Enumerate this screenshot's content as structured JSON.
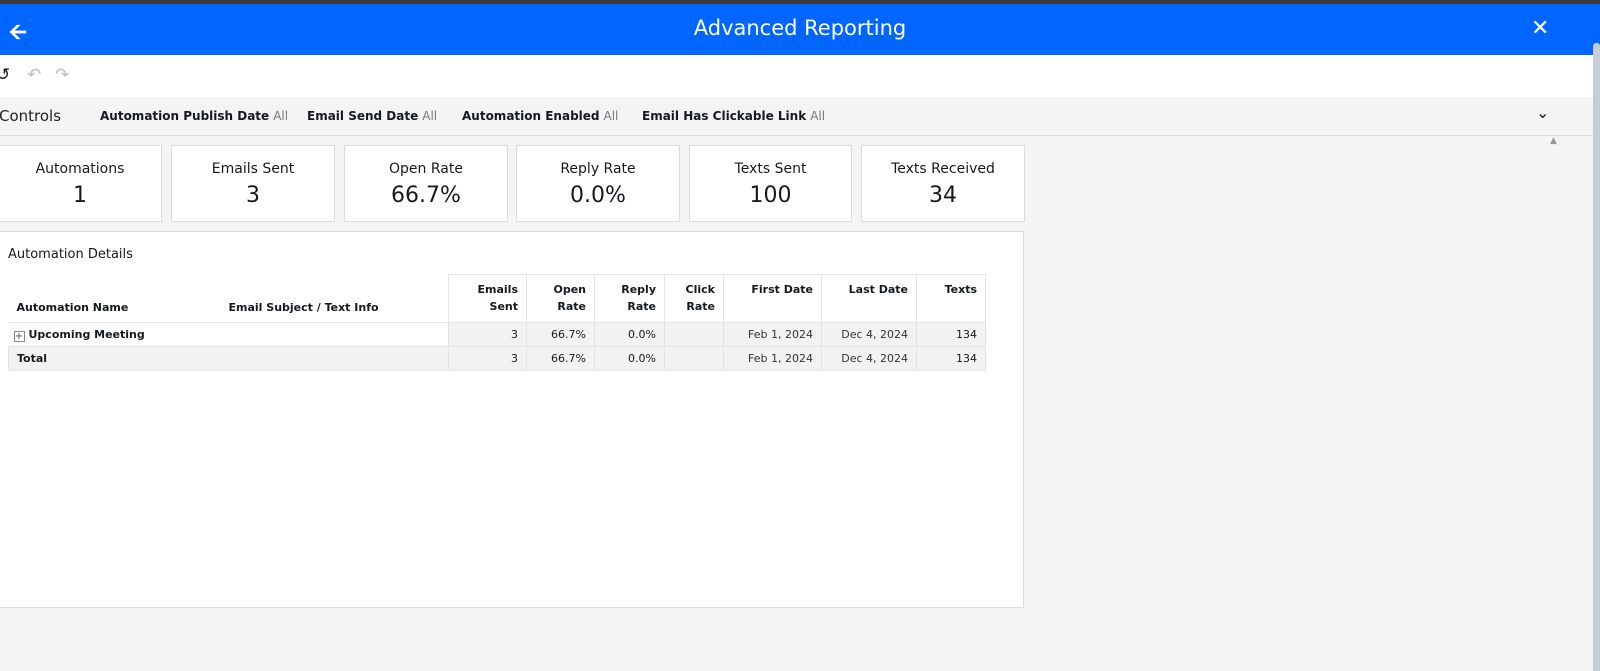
{
  "header": {
    "title": "Advanced Reporting",
    "back_icon": "arrow-left-icon",
    "close_icon": "close-icon"
  },
  "toolbar": {
    "icons": [
      "reset-icon",
      "undo-icon",
      "redo-icon"
    ]
  },
  "controls": {
    "label": "Controls",
    "filters": [
      {
        "name": "Automation Publish Date",
        "value": "All"
      },
      {
        "name": "Email Send Date",
        "value": "All"
      },
      {
        "name": "Automation Enabled",
        "value": "All"
      },
      {
        "name": "Email Has Clickable Link",
        "value": "All"
      }
    ]
  },
  "kpis": [
    {
      "label": "Automations",
      "value": "1"
    },
    {
      "label": "Emails Sent",
      "value": "3"
    },
    {
      "label": "Open Rate",
      "value": "66.7%"
    },
    {
      "label": "Reply Rate",
      "value": "0.0%"
    },
    {
      "label": "Texts Sent",
      "value": "100"
    },
    {
      "label": "Texts Received",
      "value": "34"
    }
  ],
  "table": {
    "title": "Automation Details",
    "headers": {
      "name": "Automation Name",
      "subject": "Email Subject / Text Info",
      "emails1": "Emails",
      "emails2": "Sent",
      "open1": "Open",
      "open2": "Rate",
      "reply1": "Reply",
      "reply2": "Rate",
      "click1": "Click",
      "click2": "Rate",
      "first": "First Date",
      "last": "Last Date",
      "texts": "Texts"
    },
    "rows": [
      {
        "name": "Upcoming Meeting",
        "subject": "",
        "emails": "3",
        "open": "66.7%",
        "reply": "0.0%",
        "click": "",
        "first": "Feb 1, 2024",
        "last": "Dec 4, 2024",
        "texts": "134"
      }
    ],
    "total": {
      "name": "Total",
      "emails": "3",
      "open": "66.7%",
      "reply": "0.0%",
      "click": "",
      "first": "Feb 1, 2024",
      "last": "Dec 4, 2024",
      "texts": "134"
    }
  }
}
